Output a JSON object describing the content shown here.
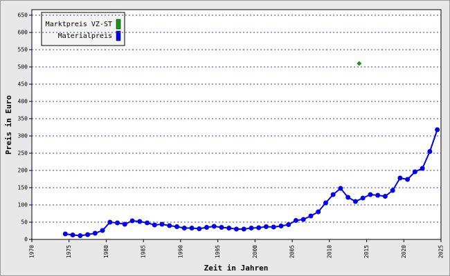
{
  "chart_data": {
    "type": "line",
    "xlabel": "Zeit in Jahren",
    "ylabel": "Preis in Euro",
    "xlim": [
      1970,
      2025
    ],
    "xticks": [
      1970,
      1975,
      1980,
      1985,
      1990,
      1995,
      2000,
      2005,
      2010,
      2015,
      2020,
      2025
    ],
    "ylim": [
      0,
      650
    ],
    "yticks": [
      0,
      50,
      100,
      150,
      200,
      250,
      300,
      350,
      400,
      450,
      500,
      550,
      600,
      650
    ],
    "grid": true,
    "legend": "upper left",
    "series": [
      {
        "name": "Marktpreis VZ-ST",
        "color": "#169916",
        "marker": "diamond",
        "x": [
          2014
        ],
        "values": [
          510
        ]
      },
      {
        "name": "Materialpreis",
        "color": "#0000ee",
        "marker": "circle",
        "x": [
          1974.5,
          1975.5,
          1976.5,
          1977.5,
          1978.5,
          1979.5,
          1980.5,
          1981.5,
          1982.5,
          1983.5,
          1984.5,
          1985.5,
          1986.5,
          1987.5,
          1988.5,
          1989.5,
          1990.5,
          1991.5,
          1992.5,
          1993.5,
          1994.5,
          1995.5,
          1996.5,
          1997.5,
          1998.5,
          1999.5,
          2000.5,
          2001.5,
          2002.5,
          2003.5,
          2004.5,
          2005.5,
          2006.5,
          2007.5,
          2008.5,
          2009.5,
          2010.5,
          2011.5,
          2012.5,
          2013.5,
          2014.5,
          2015.5,
          2016.5,
          2017.5,
          2018.5,
          2019.5,
          2020.5,
          2021.5,
          2022.5,
          2023.5,
          2024.5
        ],
        "values": [
          16,
          13,
          11,
          14,
          18,
          26,
          50,
          48,
          44,
          54,
          52,
          48,
          42,
          44,
          40,
          37,
          33,
          33,
          31,
          35,
          38,
          35,
          33,
          30,
          30,
          33,
          34,
          37,
          36,
          39,
          43,
          55,
          58,
          68,
          80,
          106,
          130,
          148,
          122,
          110,
          120,
          130,
          128,
          125,
          142,
          178,
          174,
          196,
          206,
          255,
          318
        ]
      }
    ]
  }
}
